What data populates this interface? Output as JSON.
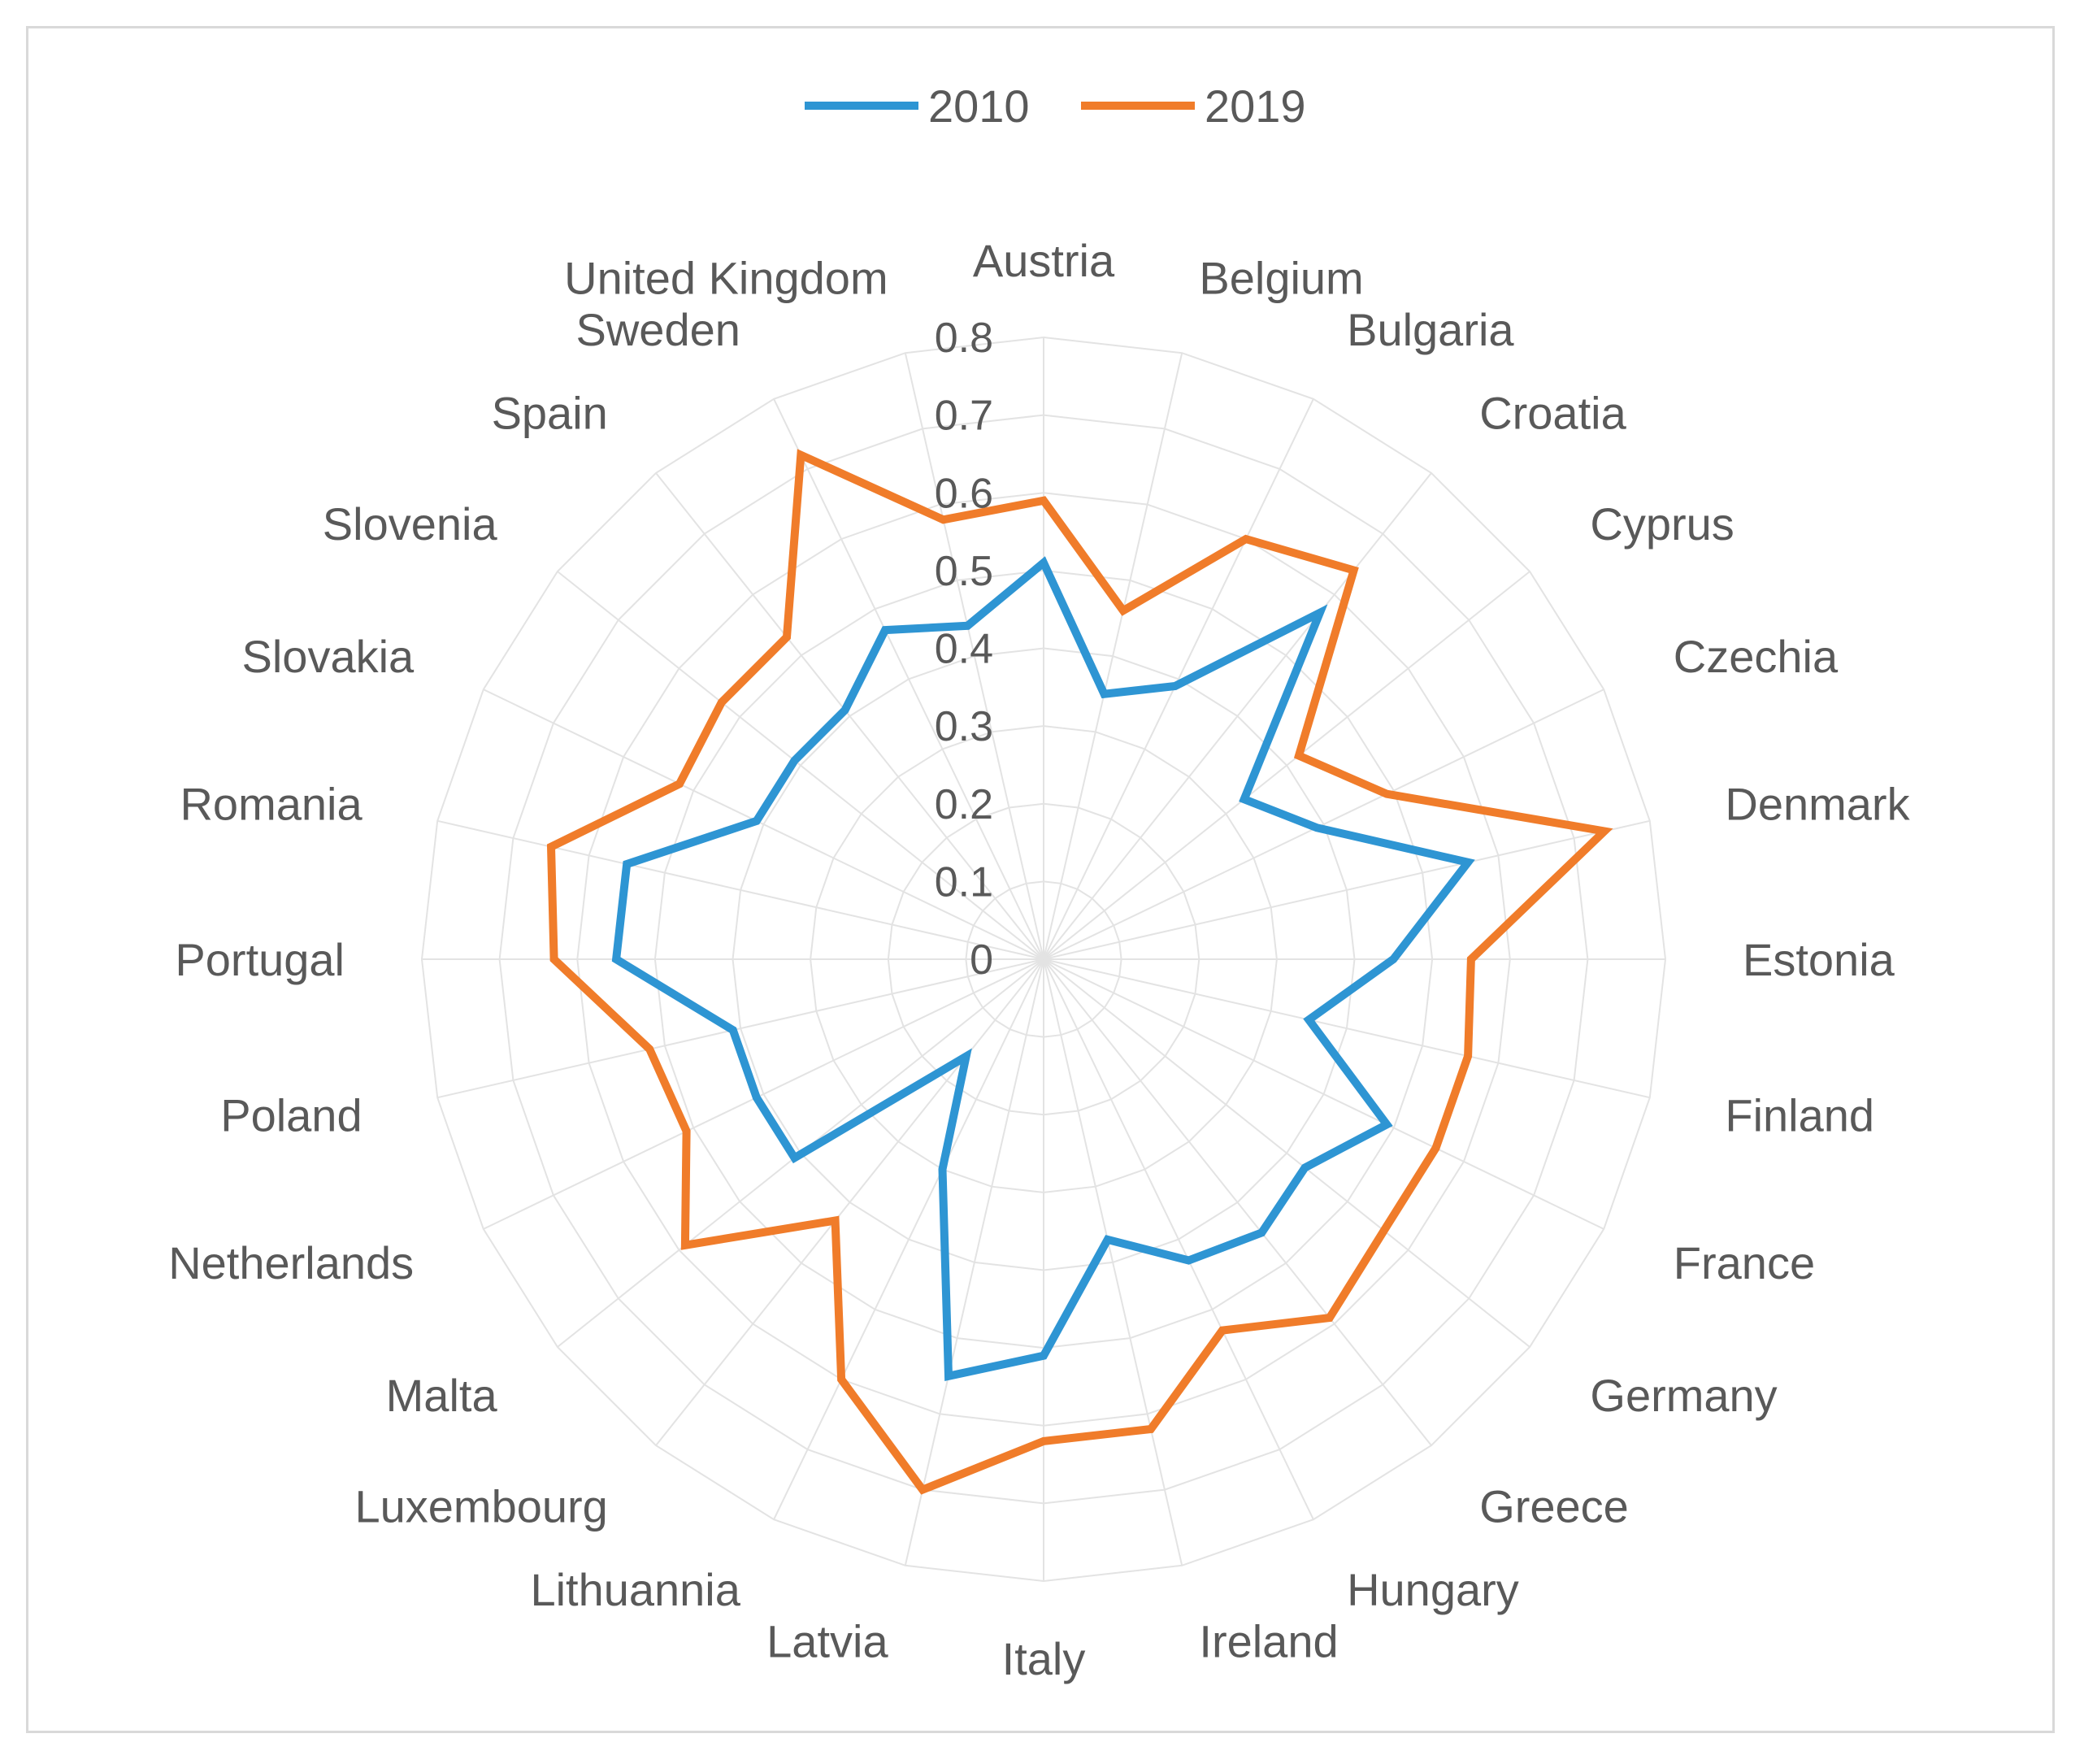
{
  "chart_data": {
    "type": "radar",
    "title": "",
    "categories": [
      "Austria",
      "Belgium",
      "Bulgaria",
      "Croatia",
      "Cyprus",
      "Czechia",
      "Denmark",
      "Estonia",
      "Finland",
      "France",
      "Germany",
      "Greece",
      "Hungary",
      "Ireland",
      "Italy",
      "Latvia",
      "Lithuannia",
      "Luxembourg",
      "Malta",
      "Netherlands",
      "Poland",
      "Portugal",
      "Romania",
      "Slovakia",
      "Slovenia",
      "Spain",
      "Sweden",
      "United Kingdom"
    ],
    "rlim": [
      0,
      0.8
    ],
    "ticks": [
      "0",
      "0.1",
      "0.2",
      "0.3",
      "0.4",
      "0.5",
      "0.6",
      "0.7",
      "0.8"
    ],
    "legend_position": "top",
    "series": [
      {
        "name": "2010",
        "color": "#2e95d3",
        "values": [
          0.51,
          0.35,
          0.39,
          0.57,
          0.33,
          0.39,
          0.56,
          0.45,
          0.35,
          0.49,
          0.43,
          0.45,
          0.43,
          0.37,
          0.51,
          0.55,
          0.3,
          0.16,
          0.41,
          0.41,
          0.41,
          0.55,
          0.55,
          0.41,
          0.41,
          0.41,
          0.47,
          0.44
        ]
      },
      {
        "name": "2019",
        "color": "#f07c2a",
        "values": [
          0.59,
          0.46,
          0.6,
          0.64,
          0.42,
          0.49,
          0.74,
          0.55,
          0.56,
          0.56,
          0.56,
          0.59,
          0.53,
          0.62,
          0.62,
          0.7,
          0.6,
          0.43,
          0.59,
          0.51,
          0.52,
          0.63,
          0.65,
          0.52,
          0.53,
          0.53,
          0.72,
          0.58
        ]
      }
    ]
  }
}
